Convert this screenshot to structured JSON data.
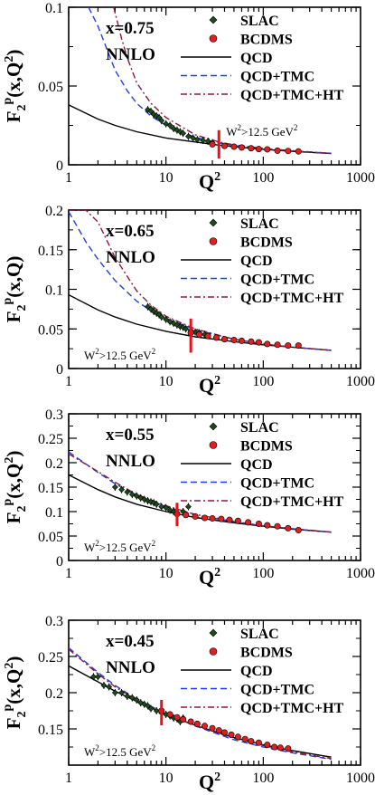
{
  "chart_data": [
    {
      "type": "line",
      "panel": "x=0.75",
      "label_x": "x=0.75",
      "label_order": "NNLO",
      "ylabel": "F2p(x,Q2)",
      "ylabel_main": "F",
      "ylabel_sub": "2",
      "ylabel_sup": "p",
      "ylabel_tail": "(x,Q",
      "ylabel_tail_sup": "2",
      "ylabel_close": ")",
      "xlabel": "Q",
      "xlabel_sup": "2",
      "xscale": "log",
      "xlim": [
        1,
        1000
      ],
      "ylim": [
        0,
        0.1
      ],
      "xticks": [
        "1",
        "10",
        "100",
        "1000"
      ],
      "yticks": [
        "0",
        "0.05",
        "0.1"
      ],
      "ytick_values": [
        0,
        0.05,
        0.1
      ],
      "cut_label": "W",
      "cut_label_sup": "2",
      "cut_label_tail": ">12.5 GeV",
      "cut_label_tail_sup": "2",
      "cut_q2": 35,
      "cut_range": [
        0.004,
        0.022
      ],
      "legend": [
        "SLAC",
        "BCDMS",
        "QCD",
        "QCD+TMC",
        "QCD+TMC+HT"
      ],
      "series": [
        {
          "name": "QCD",
          "x": [
            1,
            2,
            3,
            5,
            10,
            20,
            35,
            50,
            100,
            200,
            500
          ],
          "y": [
            0.038,
            0.029,
            0.025,
            0.021,
            0.017,
            0.0145,
            0.0125,
            0.0115,
            0.0098,
            0.0085,
            0.0072
          ]
        },
        {
          "name": "QCD+TMC",
          "x": [
            1.6,
            2,
            3,
            4,
            5,
            7,
            10,
            20,
            35,
            50,
            100,
            200,
            500
          ],
          "y": [
            0.1,
            0.088,
            0.06,
            0.047,
            0.039,
            0.031,
            0.025,
            0.0175,
            0.0138,
            0.0123,
            0.0102,
            0.0088,
            0.0073
          ]
        },
        {
          "name": "QCD+TMC+HT",
          "x": [
            2.9,
            3.5,
            4,
            5,
            7,
            10,
            20,
            35,
            50,
            100,
            200,
            500
          ],
          "y": [
            0.1,
            0.08,
            0.068,
            0.052,
            0.039,
            0.03,
            0.019,
            0.0145,
            0.0127,
            0.0104,
            0.0089,
            0.0073
          ]
        }
      ],
      "points_slac": {
        "x": [
          6.5,
          7,
          7.5,
          8,
          8.5,
          9,
          10,
          11,
          12,
          13,
          14,
          15,
          17,
          19,
          21,
          24,
          27,
          30
        ],
        "y": [
          0.035,
          0.034,
          0.032,
          0.031,
          0.03,
          0.028,
          0.026,
          0.025,
          0.023,
          0.022,
          0.021,
          0.02,
          0.018,
          0.017,
          0.016,
          0.0155,
          0.015,
          0.014
        ]
      },
      "points_bcdms": {
        "x": [
          30,
          40,
          50,
          60,
          75,
          90,
          110,
          140,
          180,
          230
        ],
        "y": [
          0.013,
          0.012,
          0.0115,
          0.011,
          0.0105,
          0.01,
          0.0098,
          0.009,
          0.0088,
          0.0085
        ]
      }
    },
    {
      "type": "line",
      "panel": "x=0.65",
      "label_x": "x=0.65",
      "label_order": "NNLO",
      "ylabel": "F2p(x,Q)",
      "ylabel_main": "F",
      "ylabel_sub": "2",
      "ylabel_sup": "p",
      "ylabel_tail": "(x,Q",
      "ylabel_tail_sup": "",
      "ylabel_close": ")",
      "xlabel": "Q",
      "xlabel_sup": "2",
      "xscale": "log",
      "xlim": [
        1,
        1000
      ],
      "ylim": [
        0,
        0.2
      ],
      "xticks": [
        "1",
        "10",
        "100",
        "1000"
      ],
      "yticks": [
        "0",
        "0.05",
        "0.1",
        "0.15",
        "0.2"
      ],
      "ytick_values": [
        0,
        0.05,
        0.1,
        0.15,
        0.2
      ],
      "cut_label": "W",
      "cut_label_sup": "2",
      "cut_label_tail": ">12.5 GeV",
      "cut_label_tail_sup": "2",
      "cut_q2": 18,
      "cut_range": [
        0.02,
        0.063
      ],
      "legend": [
        "SLAC",
        "BCDMS",
        "QCD",
        "QCD+TMC",
        "QCD+TMC+HT"
      ],
      "series": [
        {
          "name": "QCD",
          "x": [
            1,
            2,
            3,
            5,
            10,
            20,
            50,
            100,
            200,
            500
          ],
          "y": [
            0.093,
            0.074,
            0.065,
            0.056,
            0.047,
            0.04,
            0.034,
            0.03,
            0.027,
            0.023
          ]
        },
        {
          "name": "QCD+TMC",
          "x": [
            1,
            1.5,
            2,
            3,
            5,
            7,
            10,
            20,
            50,
            100,
            200,
            500
          ],
          "y": [
            0.198,
            0.16,
            0.138,
            0.111,
            0.085,
            0.073,
            0.063,
            0.049,
            0.037,
            0.031,
            0.027,
            0.023
          ]
        },
        {
          "name": "QCD+TMC+HT",
          "x": [
            1,
            1.5,
            2,
            3,
            5,
            7,
            10,
            20,
            50,
            100,
            200,
            500
          ],
          "y": [
            0.2,
            0.2,
            0.185,
            0.14,
            0.098,
            0.08,
            0.066,
            0.05,
            0.037,
            0.031,
            0.027,
            0.023
          ]
        }
      ],
      "points_slac": {
        "x": [
          6.5,
          7,
          7.5,
          8,
          8.5,
          9,
          10,
          11,
          12,
          13,
          14,
          15,
          16,
          18,
          20,
          22,
          25
        ],
        "y": [
          0.078,
          0.075,
          0.072,
          0.07,
          0.068,
          0.065,
          0.062,
          0.059,
          0.057,
          0.055,
          0.053,
          0.052,
          0.05,
          0.048,
          0.046,
          0.045,
          0.043
        ]
      },
      "points_bcdms": {
        "x": [
          18,
          22,
          27,
          33,
          40,
          50,
          60,
          75,
          90,
          110,
          140,
          180,
          230
        ],
        "y": [
          0.045,
          0.043,
          0.041,
          0.039,
          0.037,
          0.036,
          0.035,
          0.034,
          0.033,
          0.031,
          0.03,
          0.029,
          0.029
        ]
      }
    },
    {
      "type": "line",
      "panel": "x=0.55",
      "label_x": "x=0.55",
      "label_order": "NNLO",
      "ylabel": "F2p(x,Q2)",
      "ylabel_main": "F",
      "ylabel_sub": "2",
      "ylabel_sup": "p",
      "ylabel_tail": "(x,Q",
      "ylabel_tail_sup": "2",
      "ylabel_close": ")",
      "xlabel": "Q",
      "xlabel_sup": "2",
      "xscale": "log",
      "xlim": [
        1,
        1000
      ],
      "ylim": [
        0,
        0.3
      ],
      "xticks": [
        "1",
        "10",
        "100",
        "1000"
      ],
      "yticks": [
        "0",
        "0.05",
        "0.1",
        "0.15",
        "0.2",
        "0.25",
        "0.3"
      ],
      "ytick_values": [
        0,
        0.05,
        0.1,
        0.15,
        0.2,
        0.25,
        0.3
      ],
      "cut_label": "W",
      "cut_label_sup": "2",
      "cut_label_tail": ">12.5 GeV",
      "cut_label_tail_sup": "2",
      "cut_q2": 13,
      "cut_range": [
        0.07,
        0.118
      ],
      "legend": [
        "SLAC",
        "BCDMS",
        "QCD",
        "QCD+TMC",
        "QCD+TMC+HT"
      ],
      "series": [
        {
          "name": "QCD",
          "x": [
            1,
            2,
            3,
            5,
            10,
            20,
            50,
            100,
            200,
            500
          ],
          "y": [
            0.175,
            0.145,
            0.13,
            0.115,
            0.1,
            0.088,
            0.077,
            0.07,
            0.064,
            0.058
          ]
        },
        {
          "name": "QCD+TMC",
          "x": [
            1,
            2,
            3,
            5,
            10,
            20,
            50,
            100,
            200,
            500
          ],
          "y": [
            0.222,
            0.18,
            0.157,
            0.133,
            0.11,
            0.093,
            0.079,
            0.071,
            0.065,
            0.058
          ]
        },
        {
          "name": "QCD+TMC+HT",
          "x": [
            1,
            2,
            3,
            5,
            10,
            20,
            50,
            100,
            200,
            500
          ],
          "y": [
            0.218,
            0.182,
            0.16,
            0.135,
            0.112,
            0.094,
            0.08,
            0.071,
            0.065,
            0.058
          ]
        }
      ],
      "points_slac": {
        "x": [
          3,
          3.5,
          4,
          4.5,
          5,
          5.5,
          6,
          6.5,
          7,
          7.5,
          8,
          9,
          10,
          11,
          12,
          13,
          15,
          17
        ],
        "y": [
          0.15,
          0.145,
          0.14,
          0.135,
          0.132,
          0.128,
          0.125,
          0.122,
          0.12,
          0.118,
          0.115,
          0.11,
          0.108,
          0.103,
          0.1,
          0.098,
          0.1,
          0.11
        ]
      },
      "points_bcdms": {
        "x": [
          13,
          16,
          20,
          25,
          30,
          37,
          45,
          55,
          70,
          90,
          110,
          140,
          180,
          230
        ],
        "y": [
          0.095,
          0.093,
          0.09,
          0.087,
          0.086,
          0.085,
          0.083,
          0.081,
          0.078,
          0.075,
          0.072,
          0.07,
          0.066,
          0.062
        ]
      }
    },
    {
      "type": "line",
      "panel": "x=0.45",
      "label_x": "x=0.45",
      "label_order": "NNLO",
      "ylabel": "F2p(x,Q2)",
      "ylabel_main": "F",
      "ylabel_sub": "2",
      "ylabel_sup": "p",
      "ylabel_tail": "(x,Q",
      "ylabel_tail_sup": "2",
      "ylabel_close": ")",
      "xlabel": "Q",
      "xlabel_sup": "2",
      "xscale": "log",
      "xlim": [
        1,
        1000
      ],
      "ylim": [
        0.1,
        0.3
      ],
      "xticks": [
        "1",
        "10",
        "100",
        "1000"
      ],
      "yticks": [
        "0.15",
        "0.2",
        "0.25",
        "0.3"
      ],
      "ytick_values": [
        0.15,
        0.2,
        0.25,
        0.3
      ],
      "cut_label": "W",
      "cut_label_sup": "2",
      "cut_label_tail": ">12.5 GeV",
      "cut_label_tail_sup": "2",
      "cut_q2": 9,
      "cut_range": [
        0.155,
        0.19
      ],
      "legend": [
        "SLAC",
        "BCDMS",
        "QCD",
        "QCD+TMC",
        "QCD+TMC+HT"
      ],
      "series": [
        {
          "name": "QCD",
          "x": [
            1,
            2,
            3,
            5,
            10,
            20,
            50,
            100,
            200,
            500
          ],
          "y": [
            0.237,
            0.215,
            0.202,
            0.188,
            0.17,
            0.155,
            0.138,
            0.128,
            0.12,
            0.111
          ]
        },
        {
          "name": "QCD+TMC",
          "x": [
            1,
            2,
            3,
            5,
            10,
            20,
            50,
            100,
            200,
            500
          ],
          "y": [
            0.262,
            0.228,
            0.21,
            0.191,
            0.171,
            0.154,
            0.135,
            0.125,
            0.117,
            0.108
          ]
        },
        {
          "name": "QCD+TMC+HT",
          "x": [
            1,
            2,
            3,
            5,
            10,
            20,
            50,
            100,
            200,
            500
          ],
          "y": [
            0.26,
            0.226,
            0.208,
            0.19,
            0.17,
            0.155,
            0.137,
            0.127,
            0.118,
            0.109
          ]
        }
      ],
      "points_slac": {
        "x": [
          1.8,
          2,
          2.3,
          2.6,
          3,
          3.5,
          4,
          4.5,
          5,
          5.5,
          6,
          6.5,
          7,
          8,
          9,
          10,
          11,
          12,
          13,
          14,
          15
        ],
        "y": [
          0.222,
          0.222,
          0.21,
          0.208,
          0.2,
          0.2,
          0.195,
          0.193,
          0.19,
          0.186,
          0.184,
          0.182,
          0.178,
          0.175,
          0.172,
          0.17,
          0.168,
          0.165,
          0.164,
          0.16,
          0.165
        ]
      },
      "points_bcdms": {
        "x": [
          9,
          11,
          13,
          15,
          18,
          21,
          25,
          30,
          35,
          40,
          47,
          55,
          65,
          75,
          90,
          110,
          130,
          150,
          180
        ],
        "y": [
          0.175,
          0.17,
          0.166,
          0.163,
          0.16,
          0.157,
          0.154,
          0.151,
          0.148,
          0.145,
          0.142,
          0.139,
          0.136,
          0.133,
          0.131,
          0.128,
          0.125,
          0.124,
          0.123
        ]
      }
    }
  ],
  "style": {
    "axis_color": "#000000",
    "qcd_color": "#000000",
    "tmc_color": "#1f3fe0",
    "ht_color": "#8b1a3a",
    "bcdms_fill": "#e02020",
    "slac_fill": "#1a4d1a",
    "cut_color": "#e8101a"
  }
}
